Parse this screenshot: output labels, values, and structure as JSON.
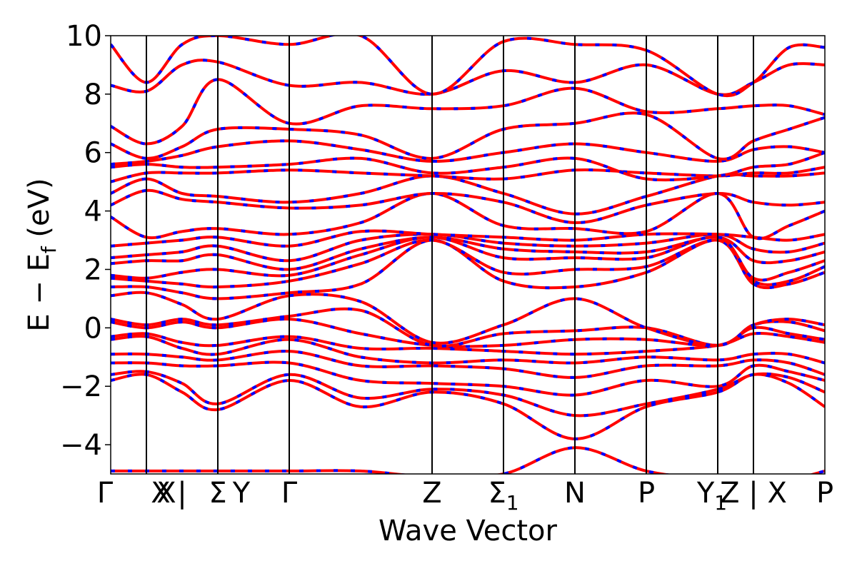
{
  "chart_data": {
    "type": "line",
    "xlabel": "Wave Vector",
    "ylabel": "E − E_f (eV)",
    "ylabel_main": "E  −  E",
    "ylabel_sub": "f",
    "ylabel_unit": " (eV)",
    "ylim": [
      -5,
      10
    ],
    "yticks": [
      -4,
      -2,
      0,
      2,
      4,
      6,
      8,
      10
    ],
    "ytick_labels": [
      "−4",
      "−2",
      "0",
      "2",
      "4",
      "6",
      "8",
      "10"
    ],
    "xlim": [
      0,
      1
    ],
    "kpoints": [
      {
        "label": "Γ",
        "x": 0.0
      },
      {
        "label": "X",
        "x": 0.05
      },
      {
        "label": "X",
        "x": 0.1
      },
      {
        "label": "|",
        "x": 0.1
      },
      {
        "label": "Y",
        "x": 0.15
      },
      {
        "label": "Σ",
        "x": 0.15
      },
      {
        "label": "Γ",
        "x": 0.25
      },
      {
        "label": "Z",
        "x": 0.45
      },
      {
        "label": "Σ",
        "sub": "1",
        "x": 0.55
      },
      {
        "label": "N",
        "x": 0.65
      },
      {
        "label": "P",
        "x": 0.75
      },
      {
        "label": "Y",
        "sub": "1",
        "x": 0.85
      },
      {
        "label": "Z | X",
        "x": 0.9
      },
      {
        "label": "P",
        "x": 1.0
      }
    ],
    "vlines": [
      0.05,
      0.15,
      0.25,
      0.45,
      0.55,
      0.65,
      0.75,
      0.85,
      0.9
    ],
    "series": [
      {
        "color": "#ff0000",
        "style": "solid"
      },
      {
        "color": "#0000ff",
        "style": "dashed"
      }
    ],
    "bands": [
      {
        "x": [
          0,
          0.05,
          0.1,
          0.15,
          0.25,
          0.35,
          0.45,
          0.55,
          0.65,
          0.75,
          0.85,
          0.9,
          0.95,
          1.0
        ],
        "y": [
          -4.9,
          -4.9,
          -4.9,
          -4.9,
          -4.9,
          -4.9,
          -5.1,
          -5.0,
          -4.1,
          -4.9,
          -5.2,
          -5.2,
          -5.2,
          -4.9
        ]
      },
      {
        "x": [
          0,
          0.05,
          0.1,
          0.15,
          0.25,
          0.35,
          0.45,
          0.55,
          0.65,
          0.75,
          0.85,
          0.9,
          0.95,
          1.0
        ],
        "y": [
          -1.8,
          -1.6,
          -2.2,
          -2.8,
          -1.8,
          -2.7,
          -2.2,
          -2.6,
          -3.8,
          -2.7,
          -2.2,
          -1.6,
          -1.9,
          -2.7
        ]
      },
      {
        "x": [
          0,
          0.05,
          0.1,
          0.15,
          0.25,
          0.35,
          0.45,
          0.55,
          0.65,
          0.75,
          0.85,
          0.9,
          0.95,
          1.0
        ],
        "y": [
          -1.6,
          -1.5,
          -1.9,
          -2.6,
          -1.6,
          -2.4,
          -2.1,
          -2.3,
          -3.0,
          -2.6,
          -2.1,
          -1.6,
          -1.7,
          -2.2
        ]
      },
      {
        "x": [
          0,
          0.05,
          0.1,
          0.15,
          0.25,
          0.35,
          0.45,
          0.55,
          0.65,
          0.75,
          0.85,
          0.9,
          0.95,
          1.0
        ],
        "y": [
          -1.2,
          -1.2,
          -1.3,
          -1.3,
          -1.2,
          -1.8,
          -1.9,
          -2.0,
          -2.3,
          -1.8,
          -2.0,
          -1.3,
          -1.5,
          -1.8
        ]
      },
      {
        "x": [
          0,
          0.05,
          0.1,
          0.15,
          0.25,
          0.35,
          0.45,
          0.55,
          0.65,
          0.75,
          0.85,
          0.9,
          0.95,
          1.0
        ],
        "y": [
          -0.9,
          -0.9,
          -1.0,
          -1.1,
          -0.8,
          -1.3,
          -1.3,
          -1.4,
          -1.7,
          -1.3,
          -1.3,
          -1.1,
          -1.2,
          -1.6
        ]
      },
      {
        "x": [
          0,
          0.05,
          0.1,
          0.15,
          0.25,
          0.35,
          0.45,
          0.55,
          0.65,
          0.75,
          0.85,
          0.9,
          0.95,
          1.0
        ],
        "y": [
          -0.4,
          -0.3,
          -0.7,
          -0.9,
          -0.4,
          -1.0,
          -1.2,
          -1.1,
          -1.2,
          -1.0,
          -1.1,
          -0.9,
          -0.9,
          -1.2
        ]
      },
      {
        "x": [
          0,
          0.05,
          0.1,
          0.15,
          0.25,
          0.35,
          0.45,
          0.55,
          0.65,
          0.75,
          0.85,
          0.9,
          0.95,
          1.0
        ],
        "y": [
          -0.3,
          -0.2,
          -0.5,
          -0.6,
          -0.3,
          -0.7,
          -0.7,
          -0.8,
          -0.9,
          -0.8,
          -0.6,
          -0.2,
          -0.3,
          -0.5
        ]
      },
      {
        "x": [
          0,
          0.05,
          0.1,
          0.15,
          0.25,
          0.35,
          0.45,
          0.55,
          0.65,
          0.75,
          0.85,
          0.9,
          0.95,
          1.0
        ],
        "y": [
          0.2,
          0.0,
          0.2,
          0.0,
          0.3,
          -0.2,
          -0.6,
          -0.6,
          -0.4,
          -0.4,
          -0.6,
          0.0,
          -0.2,
          -0.4
        ]
      },
      {
        "x": [
          0,
          0.05,
          0.1,
          0.15,
          0.25,
          0.35,
          0.45,
          0.55,
          0.65,
          0.75,
          0.85,
          0.9,
          0.95,
          1.0
        ],
        "y": [
          0.3,
          0.1,
          0.3,
          0.1,
          0.4,
          0.6,
          -0.6,
          -0.2,
          -0.1,
          0.0,
          -0.6,
          0.1,
          0.2,
          -0.1
        ]
      },
      {
        "x": [
          0,
          0.05,
          0.1,
          0.15,
          0.25,
          0.35,
          0.45,
          0.55,
          0.65,
          0.75,
          0.85,
          0.9,
          0.95,
          1.0
        ],
        "y": [
          1.1,
          1.2,
          0.8,
          0.3,
          1.1,
          0.9,
          -0.5,
          0.1,
          1.0,
          0.0,
          -0.6,
          0.1,
          0.3,
          0.1
        ]
      },
      {
        "x": [
          0,
          0.05,
          0.1,
          0.15,
          0.25,
          0.35,
          0.45,
          0.55,
          0.65,
          0.75,
          0.85,
          0.9,
          0.95,
          1.0
        ],
        "y": [
          1.4,
          1.4,
          1.2,
          1.0,
          1.2,
          1.5,
          3.0,
          1.6,
          1.4,
          1.9,
          3.0,
          1.5,
          1.5,
          1.9
        ]
      },
      {
        "x": [
          0,
          0.05,
          0.1,
          0.15,
          0.25,
          0.35,
          0.45,
          0.55,
          0.65,
          0.75,
          0.85,
          0.9,
          0.95,
          1.0
        ],
        "y": [
          1.7,
          1.6,
          1.5,
          1.4,
          1.6,
          2.2,
          3.0,
          1.9,
          2.0,
          2.1,
          3.0,
          1.6,
          1.6,
          2.1
        ]
      },
      {
        "x": [
          0,
          0.05,
          0.1,
          0.15,
          0.25,
          0.35,
          0.45,
          0.55,
          0.65,
          0.75,
          0.85,
          0.9,
          0.95,
          1.0
        ],
        "y": [
          1.8,
          1.7,
          1.9,
          2.0,
          1.8,
          2.5,
          3.1,
          2.4,
          2.4,
          2.4,
          3.1,
          1.7,
          1.9,
          2.3
        ]
      },
      {
        "x": [
          0,
          0.05,
          0.1,
          0.15,
          0.25,
          0.35,
          0.45,
          0.55,
          0.65,
          0.75,
          0.85,
          0.9,
          0.95,
          1.0
        ],
        "y": [
          2.2,
          2.3,
          2.3,
          2.5,
          2.0,
          2.7,
          3.1,
          2.7,
          2.6,
          2.6,
          3.1,
          2.3,
          2.3,
          2.6
        ]
      },
      {
        "x": [
          0,
          0.05,
          0.1,
          0.15,
          0.25,
          0.35,
          0.45,
          0.55,
          0.65,
          0.75,
          0.85,
          0.9,
          0.95,
          1.0
        ],
        "y": [
          2.4,
          2.5,
          2.6,
          2.8,
          2.3,
          3.0,
          3.2,
          2.9,
          2.8,
          2.9,
          3.2,
          2.7,
          2.6,
          2.9
        ]
      },
      {
        "x": [
          0,
          0.05,
          0.1,
          0.15,
          0.25,
          0.35,
          0.45,
          0.55,
          0.65,
          0.75,
          0.85,
          0.9,
          0.95,
          1.0
        ],
        "y": [
          2.8,
          2.9,
          3.0,
          3.1,
          2.8,
          3.3,
          3.2,
          3.1,
          3.0,
          3.2,
          3.2,
          3.1,
          3.0,
          3.2
        ]
      },
      {
        "x": [
          0,
          0.05,
          0.1,
          0.15,
          0.25,
          0.35,
          0.45,
          0.55,
          0.65,
          0.75,
          0.85,
          0.9,
          0.95,
          1.0
        ],
        "y": [
          3.8,
          3.1,
          3.3,
          3.4,
          3.2,
          3.6,
          4.6,
          3.5,
          3.4,
          3.3,
          4.6,
          3.1,
          3.5,
          4.0
        ]
      },
      {
        "x": [
          0,
          0.05,
          0.1,
          0.15,
          0.25,
          0.35,
          0.45,
          0.55,
          0.65,
          0.75,
          0.85,
          0.9,
          0.95,
          1.0
        ],
        "y": [
          4.2,
          4.7,
          4.4,
          4.3,
          4.1,
          4.2,
          4.6,
          4.3,
          3.6,
          4.2,
          4.6,
          4.3,
          4.2,
          4.3
        ]
      },
      {
        "x": [
          0,
          0.05,
          0.1,
          0.15,
          0.25,
          0.35,
          0.45,
          0.55,
          0.65,
          0.75,
          0.85,
          0.9,
          0.95,
          1.0
        ],
        "y": [
          4.6,
          5.1,
          4.6,
          4.5,
          4.3,
          4.6,
          5.2,
          4.6,
          3.9,
          4.5,
          5.2,
          5.2,
          5.2,
          5.3
        ]
      },
      {
        "x": [
          0,
          0.05,
          0.1,
          0.15,
          0.25,
          0.35,
          0.45,
          0.55,
          0.65,
          0.75,
          0.85,
          0.9,
          0.95,
          1.0
        ],
        "y": [
          5.0,
          5.3,
          5.3,
          5.3,
          5.4,
          5.3,
          5.2,
          5.1,
          5.4,
          5.3,
          5.2,
          5.3,
          5.3,
          5.5
        ]
      },
      {
        "x": [
          0,
          0.05,
          0.1,
          0.15,
          0.25,
          0.35,
          0.45,
          0.55,
          0.65,
          0.75,
          0.85,
          0.9,
          0.95,
          1.0
        ],
        "y": [
          5.5,
          5.6,
          5.5,
          5.5,
          5.6,
          5.8,
          5.3,
          5.5,
          5.8,
          5.1,
          5.2,
          5.5,
          5.6,
          6.0
        ]
      },
      {
        "x": [
          0,
          0.05,
          0.1,
          0.15,
          0.25,
          0.35,
          0.45,
          0.55,
          0.65,
          0.75,
          0.85,
          0.9,
          0.95,
          1.0
        ],
        "y": [
          5.6,
          5.7,
          5.9,
          6.2,
          6.4,
          6.1,
          5.7,
          6.0,
          6.3,
          6.0,
          5.7,
          6.1,
          6.2,
          6.0
        ]
      },
      {
        "x": [
          0,
          0.05,
          0.1,
          0.15,
          0.25,
          0.35,
          0.45,
          0.55,
          0.65,
          0.75,
          0.85,
          0.9,
          0.95,
          1.0
        ],
        "y": [
          6.3,
          5.8,
          6.2,
          6.8,
          6.8,
          6.6,
          5.8,
          6.8,
          7.0,
          7.3,
          5.8,
          6.4,
          6.8,
          7.2
        ]
      },
      {
        "x": [
          0,
          0.05,
          0.1,
          0.15,
          0.25,
          0.35,
          0.45,
          0.55,
          0.65,
          0.75,
          0.85,
          0.9,
          0.95,
          1.0
        ],
        "y": [
          6.9,
          6.3,
          6.9,
          8.5,
          7.0,
          7.6,
          7.5,
          7.6,
          8.2,
          7.4,
          7.5,
          7.6,
          7.6,
          7.3
        ]
      },
      {
        "x": [
          0,
          0.05,
          0.1,
          0.15,
          0.25,
          0.35,
          0.45,
          0.55,
          0.65,
          0.75,
          0.85,
          0.9,
          0.95,
          1.0
        ],
        "y": [
          8.3,
          8.1,
          9.0,
          9.1,
          8.3,
          8.4,
          8.0,
          8.8,
          8.4,
          9.0,
          8.0,
          8.4,
          9.0,
          9.0
        ]
      },
      {
        "x": [
          0,
          0.05,
          0.1,
          0.15,
          0.25,
          0.35,
          0.45,
          0.55,
          0.65,
          0.75,
          0.85,
          0.9,
          0.95,
          1.0
        ],
        "y": [
          9.7,
          8.4,
          9.7,
          10.0,
          9.7,
          10.0,
          8.0,
          9.8,
          9.7,
          9.5,
          8.0,
          8.4,
          9.6,
          9.6
        ]
      }
    ]
  }
}
